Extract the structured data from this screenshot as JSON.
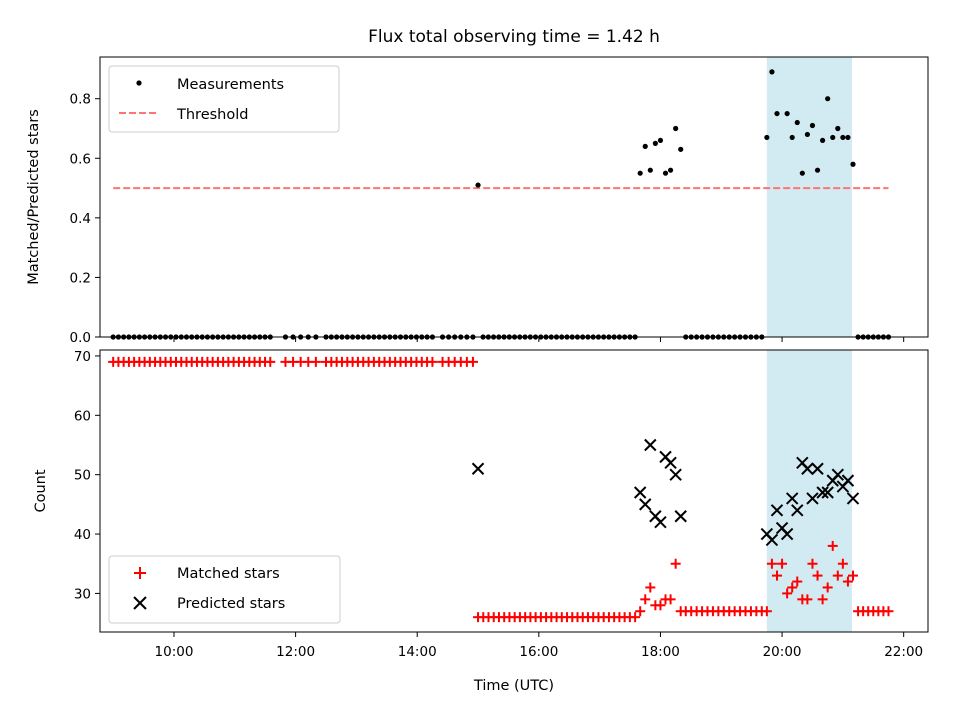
{
  "figure": {
    "title": "Flux total observing time = 1.42 h"
  },
  "chart_data": [
    {
      "type": "scatter",
      "panel": "top",
      "ylabel": "Matched/Predicted stars",
      "xlim": [
        "08:47",
        "22:24"
      ],
      "ylim": [
        0,
        0.94
      ],
      "y_ticks": [
        "0.0",
        "0.2",
        "0.4",
        "0.6",
        "0.8"
      ],
      "x_ticks": [
        "10:00",
        "12:00",
        "14:00",
        "16:00",
        "18:00",
        "20:00",
        "22:00"
      ],
      "x_tick_labels_shown": false,
      "grid": false,
      "legend": {
        "placement": "top-left",
        "entries": [
          "Measurements",
          "Threshold"
        ]
      },
      "highlight_span": {
        "x": [
          "19:45",
          "21:09"
        ],
        "color": "#add8e6"
      },
      "series": [
        {
          "name": "Measurements",
          "marker": "dot",
          "color": "#000000",
          "points": [
            [
              "15:00",
              0.51
            ],
            [
              "17:40",
              0.55
            ],
            [
              "17:45",
              0.64
            ],
            [
              "17:50",
              0.56
            ],
            [
              "17:55",
              0.65
            ],
            [
              "18:00",
              0.66
            ],
            [
              "18:05",
              0.55
            ],
            [
              "18:10",
              0.56
            ],
            [
              "18:15",
              0.7
            ],
            [
              "18:20",
              0.63
            ],
            [
              "19:45",
              0.67
            ],
            [
              "19:50",
              0.89
            ],
            [
              "19:55",
              0.75
            ],
            [
              "20:05",
              0.75
            ],
            [
              "20:10",
              0.67
            ],
            [
              "20:15",
              0.72
            ],
            [
              "20:20",
              0.55
            ],
            [
              "20:25",
              0.68
            ],
            [
              "20:30",
              0.71
            ],
            [
              "20:35",
              0.56
            ],
            [
              "20:40",
              0.66
            ],
            [
              "20:45",
              0.8
            ],
            [
              "20:50",
              0.67
            ],
            [
              "20:55",
              0.7
            ],
            [
              "21:00",
              0.67
            ],
            [
              "21:05",
              0.67
            ],
            [
              "21:10",
              0.58
            ]
          ],
          "zero_segments": [
            [
              "09:00",
              "11:35",
              31
            ],
            [
              "11:50",
              "12:20",
              5
            ],
            [
              "12:30",
              "14:15",
              21
            ],
            [
              "14:25",
              "14:55",
              6
            ],
            [
              "15:05",
              "17:35",
              30
            ],
            [
              "18:25",
              "19:40",
              15
            ],
            [
              "21:15",
              "21:45",
              7
            ]
          ]
        },
        {
          "name": "Threshold",
          "line_style": "dashed",
          "color": "#ff7373",
          "x": [
            "09:00",
            "21:45"
          ],
          "y": [
            0.5,
            0.5
          ]
        }
      ]
    },
    {
      "type": "scatter",
      "panel": "bottom",
      "xlabel": "Time (UTC)",
      "ylabel": "Count",
      "xlim": [
        "08:47",
        "22:24"
      ],
      "ylim": [
        23.5,
        71
      ],
      "y_ticks": [
        "30",
        "40",
        "50",
        "60",
        "70"
      ],
      "x_ticks": [
        "10:00",
        "12:00",
        "14:00",
        "16:00",
        "18:00",
        "20:00",
        "22:00"
      ],
      "grid": false,
      "legend": {
        "placement": "bottom-left",
        "entries": [
          "Matched stars",
          "Predicted stars"
        ]
      },
      "highlight_span": {
        "x": [
          "19:45",
          "21:09"
        ],
        "color": "#add8e6"
      },
      "series": [
        {
          "name": "Matched stars",
          "marker": "plus",
          "color": "#ff0000",
          "points": [
            [
              "17:40",
              27
            ],
            [
              "17:45",
              29
            ],
            [
              "17:50",
              31
            ],
            [
              "17:55",
              28
            ],
            [
              "18:00",
              28
            ],
            [
              "18:05",
              29
            ],
            [
              "18:10",
              29
            ],
            [
              "18:15",
              35
            ],
            [
              "18:20",
              27
            ],
            [
              "19:45",
              27
            ],
            [
              "19:50",
              35
            ],
            [
              "19:55",
              33
            ],
            [
              "20:00",
              35
            ],
            [
              "20:05",
              30
            ],
            [
              "20:10",
              31
            ],
            [
              "20:15",
              32
            ],
            [
              "20:20",
              29
            ],
            [
              "20:25",
              29
            ],
            [
              "20:30",
              35
            ],
            [
              "20:35",
              33
            ],
            [
              "20:40",
              29
            ],
            [
              "20:45",
              31
            ],
            [
              "20:50",
              38
            ],
            [
              "20:55",
              33
            ],
            [
              "21:00",
              35
            ],
            [
              "21:05",
              32
            ],
            [
              "21:10",
              33
            ]
          ],
          "constant_segments": [
            [
              "09:00",
              "11:35",
              31,
              69
            ],
            [
              "11:50",
              "12:20",
              5,
              69
            ],
            [
              "12:30",
              "14:15",
              21,
              69
            ],
            [
              "14:25",
              "14:55",
              6,
              69
            ],
            [
              "15:00",
              "17:35",
              31,
              26
            ],
            [
              "18:25",
              "19:40",
              15,
              27
            ],
            [
              "21:15",
              "21:45",
              7,
              27
            ]
          ]
        },
        {
          "name": "Predicted stars",
          "marker": "x",
          "color": "#000000",
          "points": [
            [
              "15:00",
              51
            ],
            [
              "17:40",
              47
            ],
            [
              "17:45",
              45
            ],
            [
              "17:50",
              55
            ],
            [
              "17:55",
              43
            ],
            [
              "18:00",
              42
            ],
            [
              "18:05",
              53
            ],
            [
              "18:10",
              52
            ],
            [
              "18:15",
              50
            ],
            [
              "18:20",
              43
            ],
            [
              "19:45",
              40
            ],
            [
              "19:50",
              39
            ],
            [
              "19:55",
              44
            ],
            [
              "20:00",
              41
            ],
            [
              "20:05",
              40
            ],
            [
              "20:10",
              46
            ],
            [
              "20:15",
              44
            ],
            [
              "20:20",
              52
            ],
            [
              "20:25",
              51
            ],
            [
              "20:30",
              46
            ],
            [
              "20:35",
              51
            ],
            [
              "20:40",
              47
            ],
            [
              "20:45",
              47
            ],
            [
              "20:50",
              49
            ],
            [
              "20:55",
              50
            ],
            [
              "21:00",
              48
            ],
            [
              "21:05",
              49
            ],
            [
              "21:10",
              46
            ]
          ]
        }
      ]
    }
  ]
}
